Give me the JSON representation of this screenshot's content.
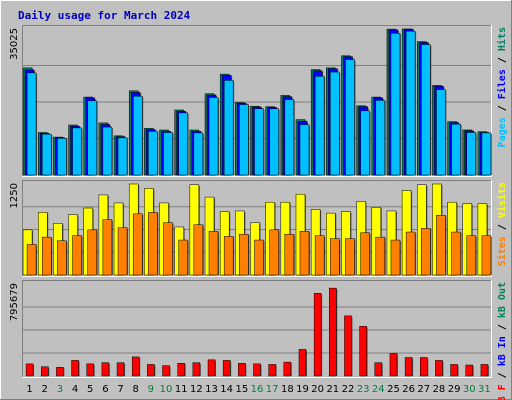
{
  "chart_data": {
    "type": "bar",
    "title": "Daily usage for March 2024",
    "categories": [
      "1",
      "2",
      "3",
      "4",
      "5",
      "6",
      "7",
      "8",
      "9",
      "10",
      "11",
      "12",
      "13",
      "14",
      "15",
      "16",
      "17",
      "18",
      "19",
      "20",
      "21",
      "22",
      "23",
      "24",
      "25",
      "26",
      "27",
      "28",
      "29",
      "30",
      "31"
    ],
    "weekend_days": [
      3,
      9,
      10,
      16,
      17,
      23,
      24,
      30,
      31
    ],
    "colors": {
      "background": "#c0c0c0",
      "title": "#0000c0",
      "day_normal": "#000000",
      "day_weekend": "#008040",
      "hits": "#00805c",
      "files": "#0000ff",
      "pages": "#00c0ff",
      "visits": "#ffff00",
      "sites": "#ff8000",
      "kb": "#ff0000",
      "kb_in": "#0000ff",
      "kb_out": "#00805c"
    },
    "panels": [
      {
        "id": "hits-files-pages",
        "max_label": "35025",
        "ymax": 35025,
        "axis_label_parts": [
          {
            "text": "Pages",
            "color": "#00c0ff"
          },
          {
            "text": " / ",
            "color": "#000000"
          },
          {
            "text": "Files",
            "color": "#0000ff"
          },
          {
            "text": " / ",
            "color": "#000000"
          },
          {
            "text": "Hits",
            "color": "#00805c"
          }
        ],
        "series": [
          {
            "name": "Hits",
            "color": "#00805c",
            "values": [
              25700,
              10200,
              9100,
              12000,
              18700,
              12500,
              9400,
              20200,
              11200,
              10800,
              15600,
              10800,
              19500,
              24200,
              17400,
              16500,
              16400,
              19100,
              13300,
              25300,
              25700,
              28600,
              16600,
              18700,
              35000,
              35600,
              32000,
              21500,
              12800,
              10800,
              10400
            ]
          },
          {
            "name": "Files",
            "color": "#0000ff",
            "values": [
              25200,
              10000,
              9000,
              11700,
              18500,
              12100,
              9200,
              19800,
              10900,
              10500,
              15300,
              10500,
              19200,
              23900,
              17200,
              16300,
              16200,
              18800,
              12900,
              25000,
              25500,
              28400,
              16400,
              18500,
              34800,
              35300,
              31800,
              21300,
              12600,
              10600,
              10200
            ]
          },
          {
            "name": "Pages",
            "color": "#00c0ff",
            "values": [
              24500,
              9800,
              8800,
              11300,
              17800,
              11500,
              8900,
              18900,
              10500,
              10200,
              14900,
              10100,
              18600,
              22700,
              16900,
              15900,
              15900,
              18100,
              12100,
              23700,
              24700,
              27700,
              15400,
              17900,
              34000,
              34500,
              31300,
              20500,
              12200,
              10200,
              10100
            ]
          }
        ]
      },
      {
        "id": "visits-sites",
        "max_label": "1250",
        "ymax": 1250,
        "axis_label_parts": [
          {
            "text": "Sites",
            "color": "#ff8000"
          },
          {
            "text": " / ",
            "color": "#000000"
          },
          {
            "text": "Visits",
            "color": "#ffff00"
          }
        ],
        "series": [
          {
            "name": "Visits",
            "color": "#ffff00",
            "values": [
              620,
              860,
              710,
              830,
              920,
              1100,
              990,
              1260,
              1190,
              990,
              660,
              1240,
              1070,
              870,
              880,
              720,
              1000,
              1000,
              1110,
              900,
              850,
              870,
              1010,
              930,
              880,
              1160,
              1240,
              1260,
              1000,
              980,
              980
            ]
          },
          {
            "name": "Sites",
            "color": "#ff8000",
            "values": [
              420,
              520,
              470,
              540,
              620,
              760,
              650,
              840,
              860,
              720,
              480,
              690,
              600,
              530,
              560,
              480,
              620,
              560,
              600,
              540,
              500,
              500,
              580,
              520,
              480,
              590,
              640,
              820,
              590,
              540,
              540
            ]
          }
        ]
      },
      {
        "id": "kbytes",
        "max_label": "795679",
        "ymax": 795679,
        "axis_label_parts": [
          {
            "text": "kB F",
            "color": "#ff0000"
          },
          {
            "text": " / ",
            "color": "#000000"
          },
          {
            "text": "kB In",
            "color": "#0000ff"
          },
          {
            "text": " / ",
            "color": "#000000"
          },
          {
            "text": "kB Out",
            "color": "#00805c"
          }
        ],
        "series": [
          {
            "name": "kB F",
            "color": "#ff0000",
            "values": [
              105000,
              80000,
              75000,
              135000,
              105000,
              115000,
              115000,
              165000,
              100000,
              90000,
              110000,
              115000,
              140000,
              135000,
              110000,
              105000,
              100000,
              120000,
              230000,
              715000,
              760000,
              520000,
              430000,
              115000,
              195000,
              160000,
              160000,
              135000,
              100000,
              95000,
              100000
            ]
          }
        ]
      }
    ]
  }
}
